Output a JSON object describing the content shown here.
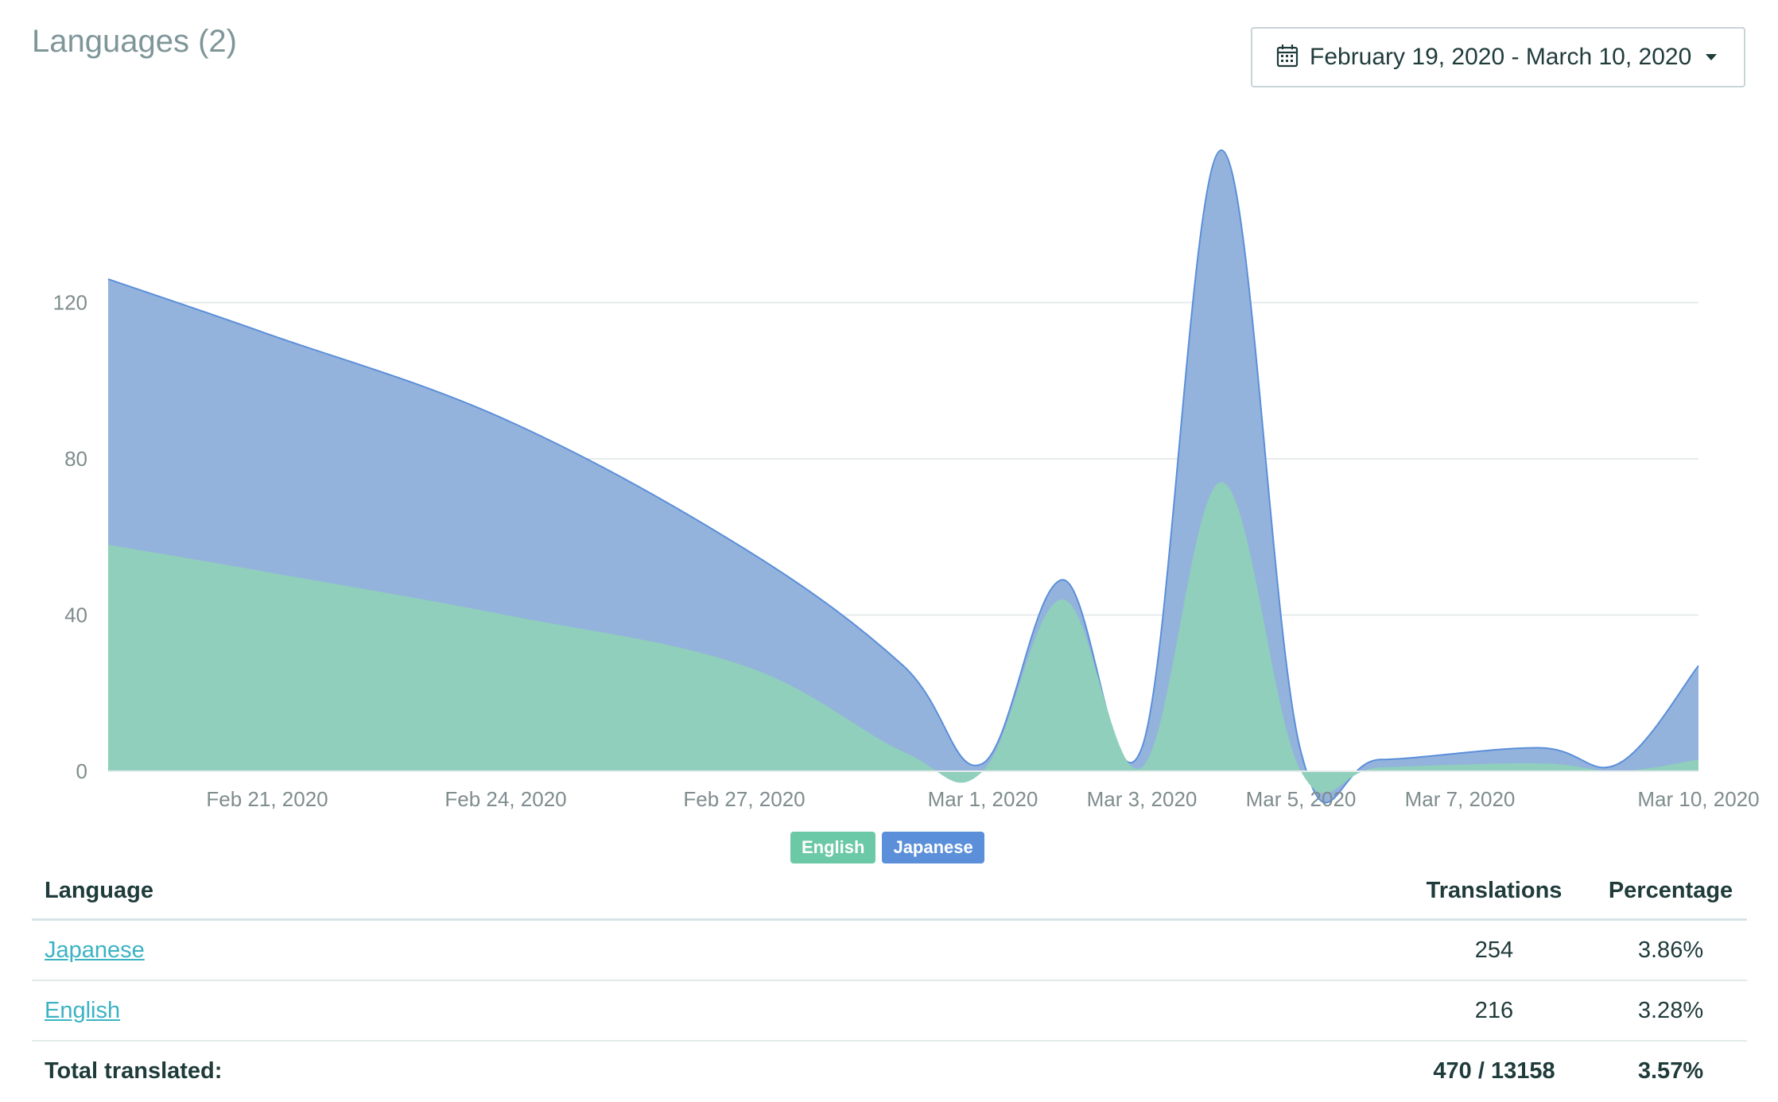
{
  "header": {
    "title": "Languages (2)",
    "date_range": "February 19, 2020 - March 10, 2020"
  },
  "colors": {
    "english": "#8fcfbb",
    "japanese": "#94b3dc",
    "english_badge": "#6cc9a7",
    "japanese_badge": "#5b8fd9",
    "line": "#5b8fd9"
  },
  "chart_data": {
    "type": "area",
    "stacked": true,
    "x": [
      "Feb 19, 2020",
      "Feb 21, 2020",
      "Feb 24, 2020",
      "Feb 27, 2020",
      "Feb 29, 2020",
      "Mar 1, 2020",
      "Mar 2, 2020",
      "Mar 3, 2020",
      "Mar 4, 2020",
      "Mar 5, 2020",
      "Mar 6, 2020",
      "Mar 8, 2020",
      "Mar 9, 2020",
      "Mar 10, 2020"
    ],
    "x_days": [
      0,
      2,
      5,
      8,
      10,
      11,
      12,
      13,
      14,
      15,
      16,
      18,
      19,
      20
    ],
    "series": [
      {
        "name": "English",
        "values": [
          58,
          51,
          40,
          27,
          5,
          0,
          44,
          1,
          74,
          0,
          1,
          2,
          0,
          3
        ]
      },
      {
        "name": "Japanese",
        "values": [
          68,
          61,
          50,
          30,
          22,
          2,
          5,
          5,
          85,
          5,
          2,
          4,
          2,
          24
        ]
      }
    ],
    "x_ticks": [
      "Feb 21, 2020",
      "Feb 24, 2020",
      "Feb 27, 2020",
      "Mar 1, 2020",
      "Mar 3, 2020",
      "Mar 5, 2020",
      "Mar 7, 2020",
      "Mar 10, 2020"
    ],
    "x_tick_days": [
      2,
      5,
      8,
      11,
      13,
      15,
      17,
      20
    ],
    "y_ticks": [
      0,
      40,
      80,
      120
    ],
    "ylim": [
      0,
      160
    ],
    "grid": true,
    "legend": "bottom-center"
  },
  "legend": {
    "english": "English",
    "japanese": "Japanese"
  },
  "table": {
    "headers": {
      "language": "Language",
      "translations": "Translations",
      "percentage": "Percentage"
    },
    "rows": [
      {
        "language": "Japanese",
        "translations": "254",
        "percentage": "3.86%"
      },
      {
        "language": "English",
        "translations": "216",
        "percentage": "3.28%"
      }
    ],
    "total": {
      "label": "Total translated:",
      "translations": "470 / 13158",
      "percentage": "3.57%"
    }
  }
}
